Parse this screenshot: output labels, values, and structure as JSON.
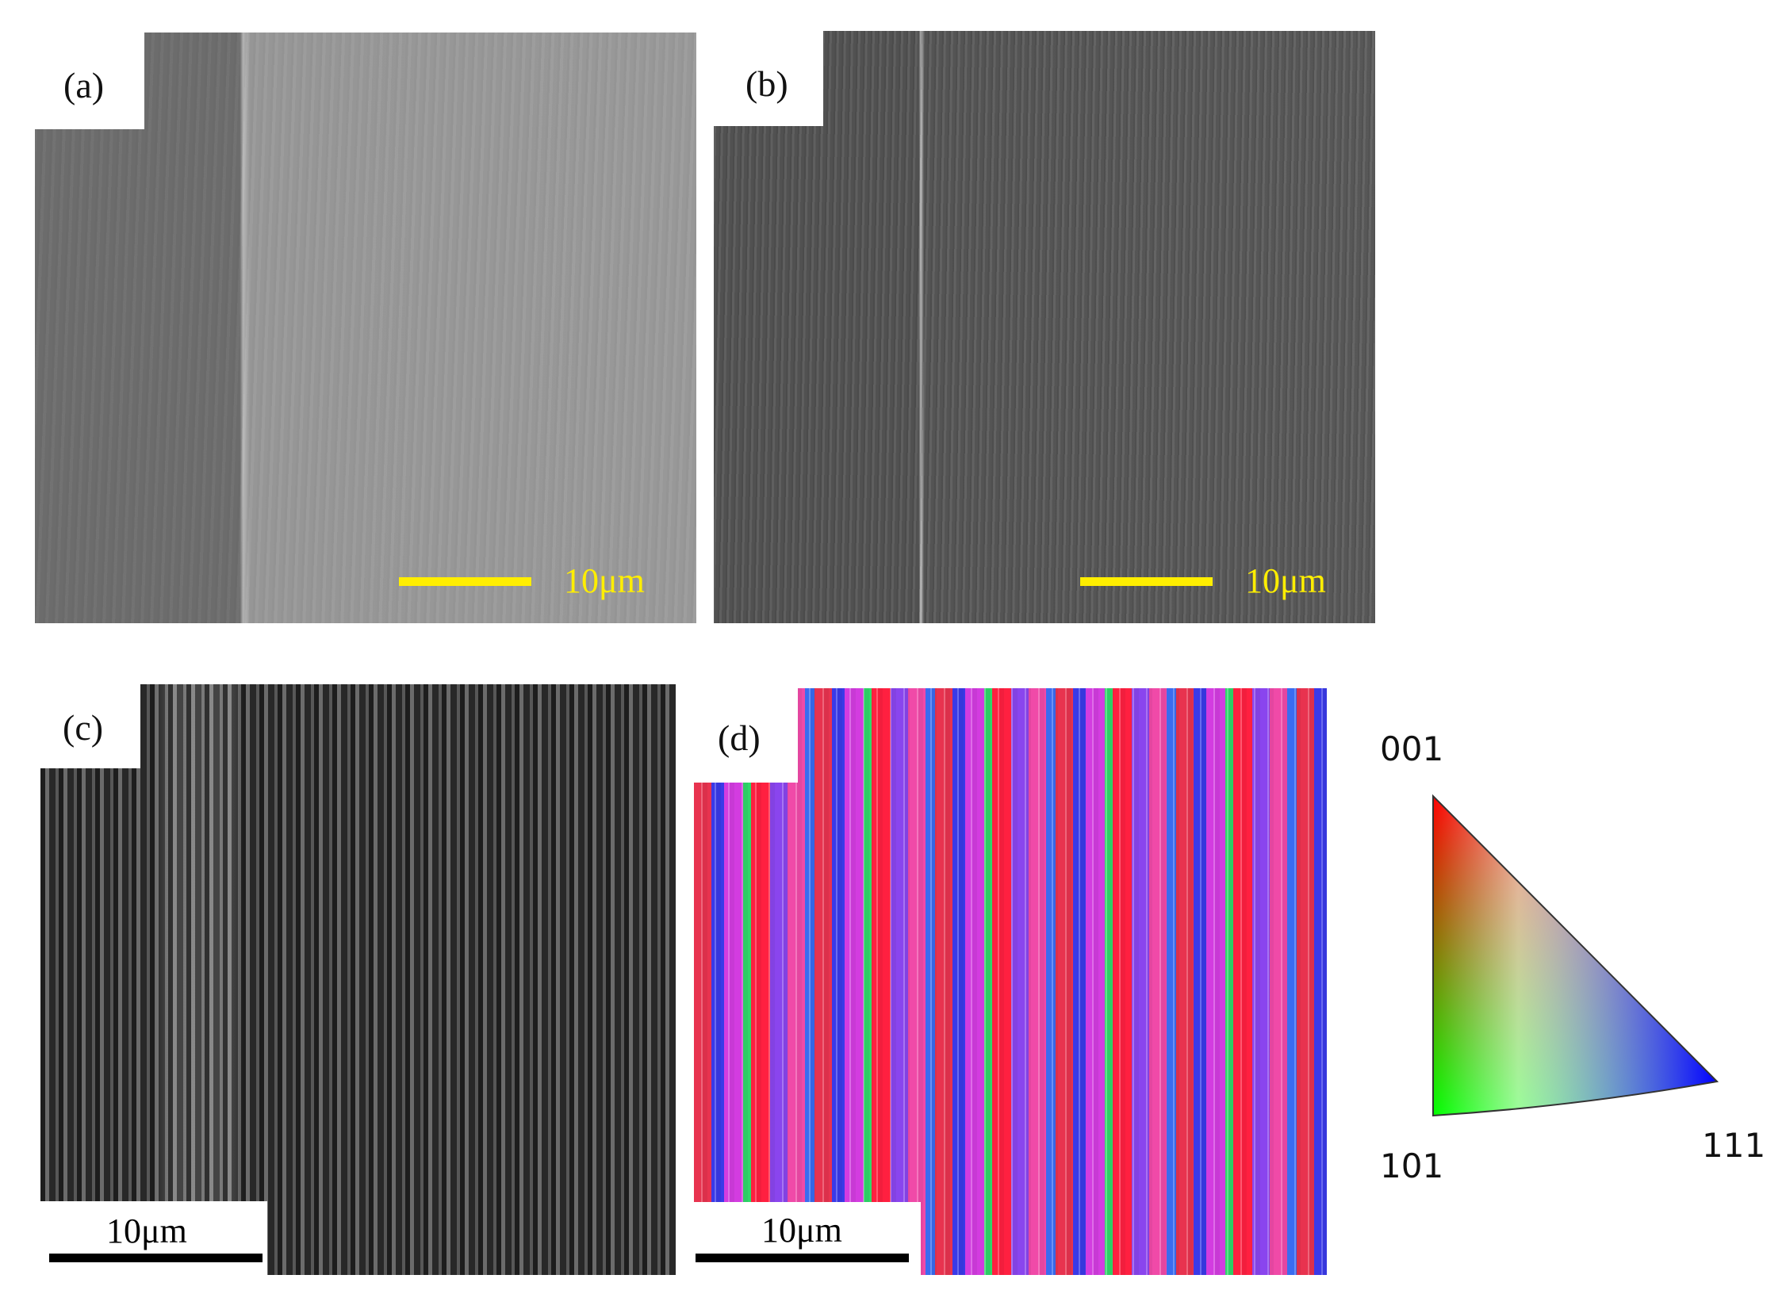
{
  "panels": [
    {
      "label": "(a)",
      "scale_bar": "10μm"
    },
    {
      "label": "(b)",
      "scale_bar": "10μm"
    },
    {
      "label": "(c)",
      "scale_bar": "10μm"
    },
    {
      "label": "(d)",
      "scale_bar": "10μm"
    }
  ],
  "legend": {
    "top": "001",
    "left": "101",
    "right": "111"
  }
}
